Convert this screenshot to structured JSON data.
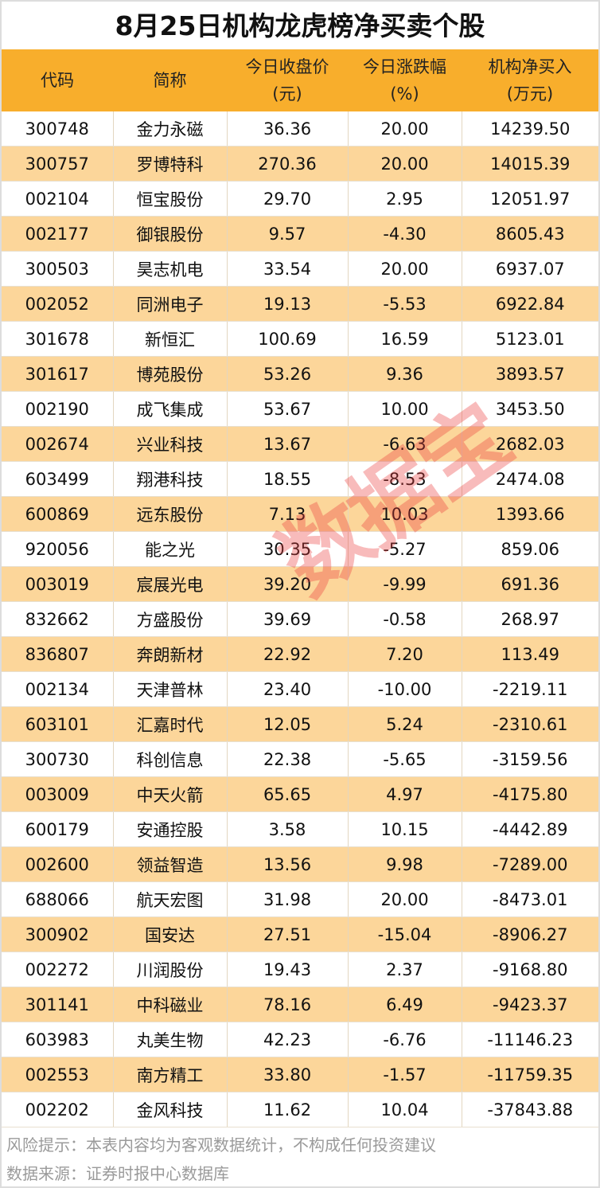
{
  "title": "8月25日机构龙虎榜净买卖个股",
  "colors": {
    "header_bg": "#F8AE2C",
    "alt_row_bg": "#FCD69A",
    "watermark": "#EB3C3C"
  },
  "columns": [
    {
      "line1": "代码",
      "line2": ""
    },
    {
      "line1": "简称",
      "line2": ""
    },
    {
      "line1": "今日收盘价",
      "line2": "(元)"
    },
    {
      "line1": "今日涨跌幅",
      "line2": "(%)"
    },
    {
      "line1": "机构净买入",
      "line2": "(万元)"
    }
  ],
  "rows": [
    [
      "300748",
      "金力永磁",
      "36.36",
      "20.00",
      "14239.50"
    ],
    [
      "300757",
      "罗博特科",
      "270.36",
      "20.00",
      "14015.39"
    ],
    [
      "002104",
      "恒宝股份",
      "29.70",
      "2.95",
      "12051.97"
    ],
    [
      "002177",
      "御银股份",
      "9.57",
      "-4.30",
      "8605.43"
    ],
    [
      "300503",
      "昊志机电",
      "33.54",
      "20.00",
      "6937.07"
    ],
    [
      "002052",
      "同洲电子",
      "19.13",
      "-5.53",
      "6922.84"
    ],
    [
      "301678",
      "新恒汇",
      "100.69",
      "16.59",
      "5123.01"
    ],
    [
      "301617",
      "博苑股份",
      "53.26",
      "9.36",
      "3893.57"
    ],
    [
      "002190",
      "成飞集成",
      "53.67",
      "10.00",
      "3453.50"
    ],
    [
      "002674",
      "兴业科技",
      "13.67",
      "-6.63",
      "2682.03"
    ],
    [
      "603499",
      "翔港科技",
      "18.55",
      "-8.53",
      "2474.08"
    ],
    [
      "600869",
      "远东股份",
      "7.13",
      "10.03",
      "1393.66"
    ],
    [
      "920056",
      "能之光",
      "30.35",
      "-5.27",
      "859.06"
    ],
    [
      "003019",
      "宸展光电",
      "39.20",
      "-9.99",
      "691.36"
    ],
    [
      "832662",
      "方盛股份",
      "39.69",
      "-0.58",
      "268.97"
    ],
    [
      "836807",
      "奔朗新材",
      "22.92",
      "7.20",
      "113.49"
    ],
    [
      "002134",
      "天津普林",
      "23.40",
      "-10.00",
      "-2219.11"
    ],
    [
      "603101",
      "汇嘉时代",
      "12.05",
      "5.24",
      "-2310.61"
    ],
    [
      "300730",
      "科创信息",
      "22.38",
      "-5.65",
      "-3159.56"
    ],
    [
      "003009",
      "中天火箭",
      "65.65",
      "4.97",
      "-4175.80"
    ],
    [
      "600179",
      "安通控股",
      "3.58",
      "10.15",
      "-4442.89"
    ],
    [
      "002600",
      "领益智造",
      "13.56",
      "9.98",
      "-7289.00"
    ],
    [
      "688066",
      "航天宏图",
      "31.98",
      "20.00",
      "-8473.01"
    ],
    [
      "300902",
      "国安达",
      "27.51",
      "-15.04",
      "-8906.27"
    ],
    [
      "002272",
      "川润股份",
      "19.43",
      "2.37",
      "-9168.80"
    ],
    [
      "301141",
      "中科磁业",
      "78.16",
      "6.49",
      "-9423.37"
    ],
    [
      "603983",
      "丸美生物",
      "42.23",
      "-6.76",
      "-11146.23"
    ],
    [
      "002553",
      "南方精工",
      "33.80",
      "-1.57",
      "-11759.35"
    ],
    [
      "002202",
      "金风科技",
      "11.62",
      "10.04",
      "-37843.88"
    ]
  ],
  "footer": {
    "risk": "风险提示：本表内容均为客观数据统计，不构成任何投资建议",
    "source": "数据来源：证券时报中心数据库"
  },
  "watermark": "数据宝"
}
